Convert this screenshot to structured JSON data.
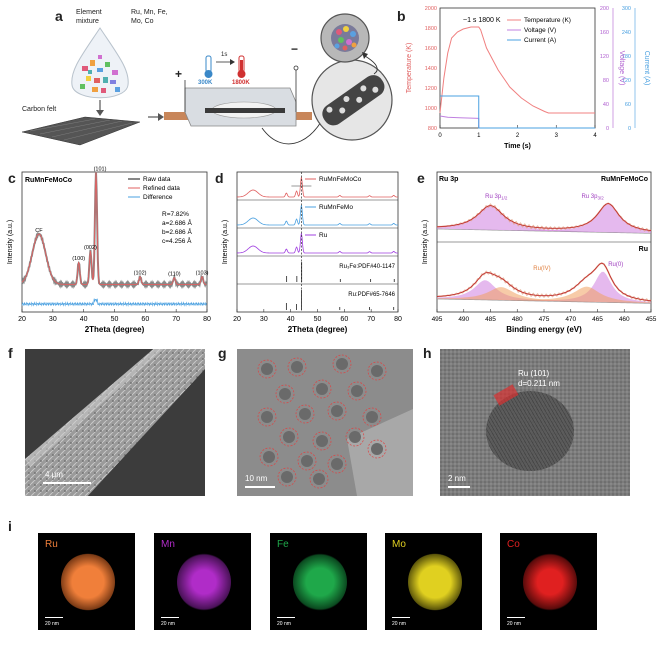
{
  "panels": {
    "a": "a",
    "b": "b",
    "c": "c",
    "d": "d",
    "e": "e",
    "f": "f",
    "g": "g",
    "h": "h",
    "i": "i"
  },
  "panel_a": {
    "element_mixture": "Element mixture",
    "element_mixture_line1": "Element",
    "element_mixture_line2": "mixture",
    "elements_line1": "Ru, Mn, Fe,",
    "elements_line2": "Mo, Co",
    "carbon_felt": "Carbon felt",
    "temp_low": "300K",
    "temp_high": "1800K",
    "time": "1s",
    "plus": "+",
    "minus": "−"
  },
  "chart_data": [
    {
      "id": "b",
      "type": "line",
      "title": "",
      "annotation": "~1 s 1800 K",
      "xlabel": "Time (s)",
      "xlim": [
        0,
        4
      ],
      "xticks": [
        0,
        1,
        2,
        3,
        4
      ],
      "ylabel_left": "Temperature (K)",
      "ylim_left": [
        800,
        2000
      ],
      "yticks_left": [
        800,
        1000,
        1200,
        1400,
        1600,
        1800,
        2000
      ],
      "ylabel_right1": "Voltage (V)",
      "ylim_right1": [
        0,
        200
      ],
      "yticks_right1": [
        0,
        40,
        80,
        120,
        160,
        200
      ],
      "ylabel_right2": "Current (A)",
      "ylim_right2": [
        0,
        300
      ],
      "yticks_right2": [
        0,
        60,
        120,
        180,
        240,
        300
      ],
      "series": [
        {
          "name": "Temperature (K)",
          "color": "#f08080",
          "x": [
            0,
            0.1,
            0.2,
            0.3,
            0.45,
            0.6,
            0.8,
            1.0,
            1.05,
            1.2,
            1.5,
            1.8,
            2.1,
            2.4,
            2.7,
            2.8,
            3.0,
            4.0
          ],
          "y": [
            950,
            1300,
            1550,
            1700,
            1760,
            1790,
            1810,
            1810,
            1780,
            1600,
            1380,
            1210,
            1100,
            1020,
            965,
            950,
            950,
            950
          ]
        },
        {
          "name": "Voltage (V)",
          "color": "#c080e0",
          "x": [
            0,
            0.1,
            0.2,
            0.5,
            1.0,
            1.0,
            4.0
          ],
          "y": [
            20,
            19,
            18,
            17,
            16,
            0,
            0
          ]
        },
        {
          "name": "Current (A)",
          "color": "#4aa0e0",
          "x": [
            0,
            0.1,
            1.0,
            1.0,
            4.0
          ],
          "y": [
            80,
            80,
            80,
            0,
            0
          ]
        }
      ]
    },
    {
      "id": "c",
      "type": "line",
      "sample": "RuMnFeMoCo",
      "xlabel": "2Theta (degree)",
      "ylabel": "Intensity (a.u.)",
      "xlim": [
        20,
        80
      ],
      "xticks": [
        20,
        30,
        40,
        50,
        60,
        70,
        80
      ],
      "legend": [
        "Raw data",
        "Refined data",
        "Difference"
      ],
      "stats": [
        "R=7.82%",
        "a=2.686 Å",
        "b=2.686 Å",
        "c=4.256 Å"
      ],
      "peak_labels": [
        "CF",
        "(100)",
        "(002)",
        "(101)",
        "(102)",
        "(110)",
        "(103)"
      ],
      "peak_positions": [
        25.5,
        38.4,
        42.2,
        44.0,
        58.3,
        69.4,
        78.4
      ],
      "peak_heights": [
        0.45,
        0.2,
        0.3,
        1.0,
        0.07,
        0.06,
        0.07
      ]
    },
    {
      "id": "d",
      "type": "line",
      "xlabel": "2Theta (degree)",
      "ylabel": "Intensity (a.u.)",
      "xlim": [
        20,
        80
      ],
      "xticks": [
        20,
        30,
        40,
        50,
        60,
        70,
        80
      ],
      "series": [
        {
          "name": "RuMnFeMoCo",
          "color": "#e06060",
          "peaks": [
            26,
            38.4,
            42.2,
            44.0,
            58.3,
            69.4,
            78.4
          ],
          "heights": [
            0.35,
            0.2,
            0.3,
            1.0,
            0.08,
            0.07,
            0.08
          ]
        },
        {
          "name": "RuMnFeMo",
          "color": "#4aa0e0",
          "peaks": [
            26,
            38.4,
            42.2,
            44.0,
            58.3,
            69.4,
            78.4
          ],
          "heights": [
            0.35,
            0.2,
            0.3,
            1.0,
            0.08,
            0.07,
            0.08
          ]
        },
        {
          "name": "Ru",
          "color": "#a040e0",
          "peaks": [
            26,
            38.4,
            42.2,
            44.0,
            58.3,
            69.4,
            78.4
          ],
          "heights": [
            0.35,
            0.2,
            0.3,
            1.0,
            0.08,
            0.07,
            0.08
          ]
        }
      ],
      "references": [
        {
          "name": "Ru₃Fe:PDF#40-1147",
          "sticks": [
            38.5,
            42.3,
            44.1,
            58.5,
            69.8,
            78.6
          ],
          "heights": [
            0.3,
            0.3,
            1.0,
            0.15,
            0.15,
            0.15
          ]
        },
        {
          "name": "Ru:PDF#65-7646",
          "sticks": [
            38.4,
            42.2,
            44.0,
            58.3,
            69.4,
            78.4
          ],
          "heights": [
            0.35,
            0.3,
            1.0,
            0.15,
            0.15,
            0.15
          ]
        }
      ]
    },
    {
      "id": "e",
      "type": "line",
      "title_left": "Ru 3p",
      "xlabel": "Binding energy (eV)",
      "ylabel": "Intensity (a.u.)",
      "xlim": [
        495,
        455
      ],
      "xticks": [
        495,
        490,
        485,
        480,
        475,
        470,
        465,
        460,
        455
      ],
      "top": {
        "name": "RuMnFeMoCo",
        "peaks": [
          "Ru 3p1/2",
          "Ru 3p3/2"
        ]
      },
      "bottom": {
        "name": "Ru",
        "peaks": [
          "Ru(IV)",
          "Ru(0)"
        ]
      }
    }
  ],
  "panel_e_labels": {
    "top_peak1_main": "Ru 3p",
    "top_peak1_sub": "1/2",
    "top_peak2_main": "Ru 3p",
    "top_peak2_sub": "3/2",
    "bottom_peak1": "Ru(IV)",
    "bottom_peak2": "Ru(0)"
  },
  "panel_f": {
    "scale": "4 μm"
  },
  "panel_g": {
    "scale": "10 nm"
  },
  "panel_h": {
    "scale": "2 nm",
    "annotation_line1": "Ru (101)",
    "annotation_line2": "d=0.211 nm"
  },
  "panel_i": {
    "maps": [
      {
        "element": "Ru",
        "color": "#f07f3a",
        "scale": "20 nm"
      },
      {
        "element": "Mn",
        "color": "#b02cc8",
        "scale": "20 nm"
      },
      {
        "element": "Fe",
        "color": "#1fa84a",
        "scale": "20 nm"
      },
      {
        "element": "Mo",
        "color": "#e0d020",
        "scale": "20 nm"
      },
      {
        "element": "Co",
        "color": "#e02020",
        "scale": "20 nm"
      }
    ]
  }
}
